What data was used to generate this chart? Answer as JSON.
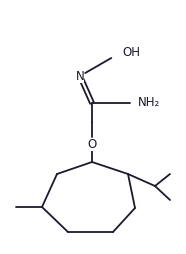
{
  "line_color": "#1a1a2e",
  "background_color": "#ffffff",
  "line_width": 1.3,
  "font_size_label": 8.5,
  "atoms": {
    "OH_text": "OH",
    "N_text": "N",
    "NH2_text": "NH₂",
    "O_text": "O"
  },
  "figsize": [
    1.86,
    2.54
  ],
  "dpi": 100
}
